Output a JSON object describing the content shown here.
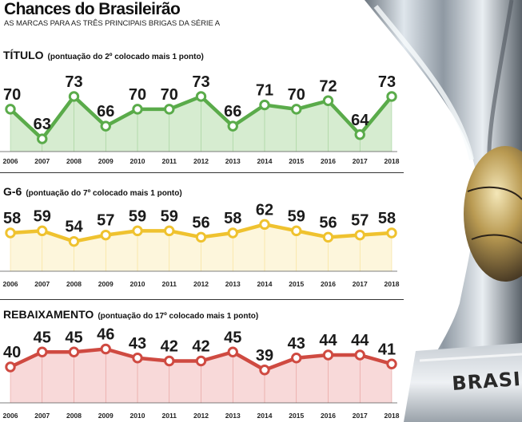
{
  "header": {
    "title": "Chances do Brasileirão",
    "subtitle": "AS MARCAS PARA AS TRÊS PRINCIPAIS BRIGAS DA SÉRIE A"
  },
  "trophy": {
    "engraving": "BRASIL"
  },
  "colors": {
    "titulo": "#5aab4a",
    "titulo_fill": "#d6ecd0",
    "g6": "#efc22f",
    "g6_fill": "#fdf6dc",
    "rebaixamento": "#cf4a41",
    "rebaixamento_fill": "#f8d9d9"
  },
  "chart_data": [
    {
      "type": "line",
      "title": "TÍTULO",
      "note": "(pontuação do 2º colocado mais 1 ponto)",
      "x": [
        "2006",
        "2007",
        "2008",
        "2009",
        "2010",
        "2011",
        "2012",
        "2013",
        "2014",
        "2015",
        "2016",
        "2017",
        "2018"
      ],
      "values": [
        70,
        63,
        73,
        66,
        70,
        70,
        73,
        66,
        71,
        70,
        72,
        64,
        73
      ],
      "ylim": [
        60,
        76
      ],
      "color": "#5aab4a",
      "fill": "#d6ecd0"
    },
    {
      "type": "line",
      "title": "G-6",
      "note": "(pontuação do 7º colocado mais 1 ponto)",
      "x": [
        "2006",
        "2007",
        "2008",
        "2009",
        "2010",
        "2011",
        "2012",
        "2013",
        "2014",
        "2015",
        "2016",
        "2017",
        "2018"
      ],
      "values": [
        58,
        59,
        54,
        57,
        59,
        59,
        56,
        58,
        62,
        59,
        56,
        57,
        58
      ],
      "ylim": [
        40,
        70
      ],
      "color": "#efc22f",
      "fill": "#fdf6dc"
    },
    {
      "type": "line",
      "title": "REBAIXAMENTO",
      "note": "(pontuação do 17º colocado mais 1 ponto)",
      "x": [
        "2006",
        "2007",
        "2008",
        "2009",
        "2010",
        "2011",
        "2012",
        "2013",
        "2014",
        "2015",
        "2016",
        "2017",
        "2018"
      ],
      "values": [
        40,
        45,
        45,
        46,
        43,
        42,
        42,
        45,
        39,
        43,
        44,
        44,
        41
      ],
      "ylim": [
        28,
        52
      ],
      "color": "#cf4a41",
      "fill": "#f8d9d9"
    }
  ]
}
